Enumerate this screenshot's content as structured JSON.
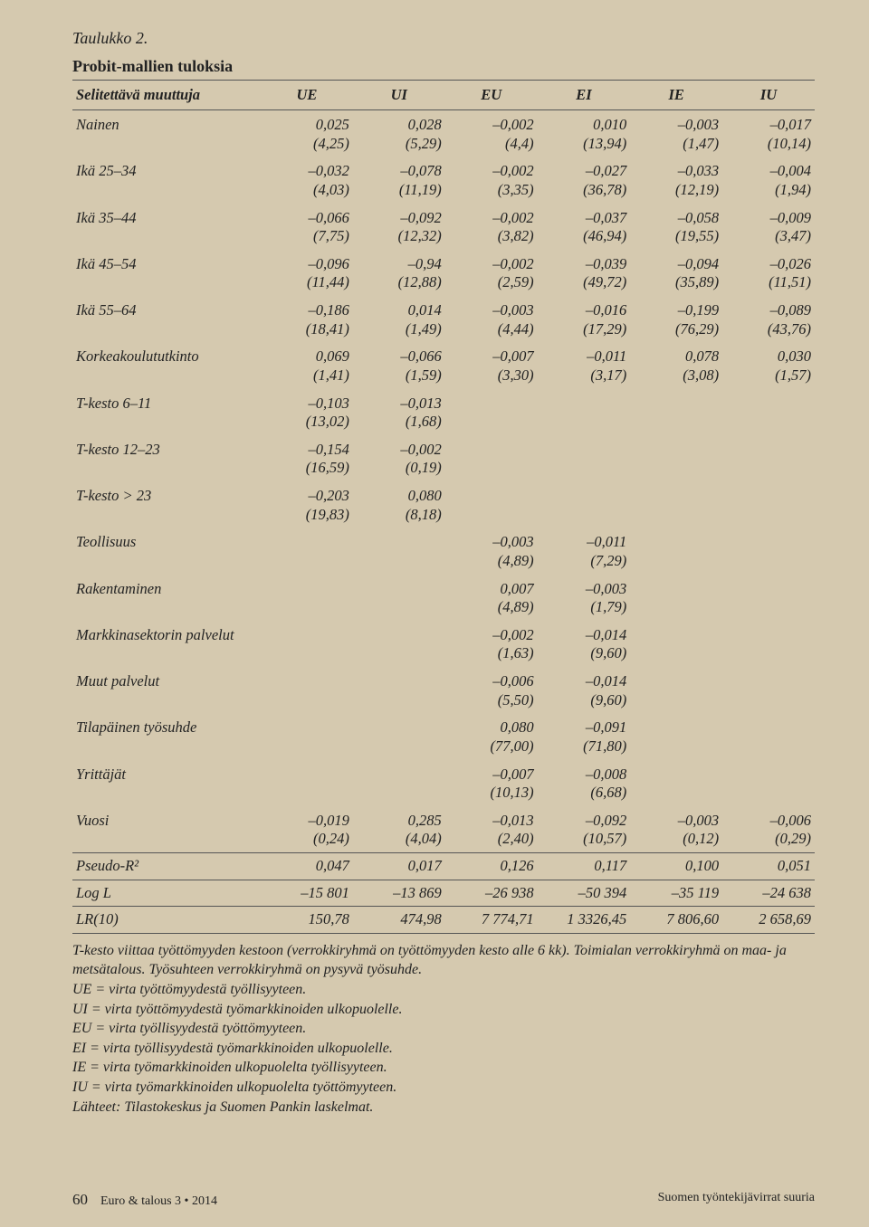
{
  "caption": "Taulukko 2.",
  "table_title": "Probit-mallien tuloksia",
  "columns": [
    "Selitettävä muuttuja",
    "UE",
    "UI",
    "EU",
    "EI",
    "IE",
    "IU"
  ],
  "rows": [
    {
      "label": "Nainen",
      "cells": [
        "0,025\n(4,25)",
        "0,028\n(5,29)",
        "–0,002\n(4,4)",
        "0,010\n(13,94)",
        "–0,003\n(1,47)",
        "–0,017\n(10,14)"
      ]
    },
    {
      "label": "Ikä 25–34",
      "cells": [
        "–0,032\n(4,03)",
        "–0,078\n(11,19)",
        "–0,002\n(3,35)",
        "–0,027\n(36,78)",
        "–0,033\n(12,19)",
        "–0,004\n(1,94)"
      ]
    },
    {
      "label": "Ikä 35–44",
      "cells": [
        "–0,066\n(7,75)",
        "–0,092\n(12,32)",
        "–0,002\n(3,82)",
        "–0,037\n(46,94)",
        "–0,058\n(19,55)",
        "–0,009\n(3,47)"
      ]
    },
    {
      "label": "Ikä 45–54",
      "cells": [
        "–0,096\n(11,44)",
        "–0,94\n(12,88)",
        "–0,002\n(2,59)",
        "–0,039\n(49,72)",
        "–0,094\n(35,89)",
        "–0,026\n(11,51)"
      ]
    },
    {
      "label": "Ikä 55–64",
      "cells": [
        "–0,186\n(18,41)",
        "0,014\n(1,49)",
        "–0,003\n(4,44)",
        "–0,016\n(17,29)",
        "–0,199\n(76,29)",
        "–0,089\n(43,76)"
      ]
    },
    {
      "label": "Korkeakoulututkinto",
      "cells": [
        "0,069\n(1,41)",
        "–0,066\n(1,59)",
        "–0,007\n(3,30)",
        "–0,011\n(3,17)",
        "0,078\n(3,08)",
        "0,030\n(1,57)"
      ]
    },
    {
      "label": "T-kesto 6–11",
      "cells": [
        "–0,103\n(13,02)",
        "–0,013\n(1,68)",
        "",
        "",
        "",
        ""
      ]
    },
    {
      "label": "T-kesto 12–23",
      "cells": [
        "–0,154\n(16,59)",
        "–0,002\n(0,19)",
        "",
        "",
        "",
        ""
      ]
    },
    {
      "label": "T-kesto > 23",
      "cells": [
        "–0,203\n(19,83)",
        "0,080\n(8,18)",
        "",
        "",
        "",
        ""
      ]
    },
    {
      "label": "Teollisuus",
      "cells": [
        "",
        "",
        "–0,003\n(4,89)",
        "–0,011\n(7,29)",
        "",
        ""
      ]
    },
    {
      "label": "Rakentaminen",
      "cells": [
        "",
        "",
        "0,007\n(4,89)",
        "–0,003\n(1,79)",
        "",
        ""
      ]
    },
    {
      "label": "Markkinasektorin palvelut",
      "cells": [
        "",
        "",
        "–0,002\n(1,63)",
        "–0,014\n(9,60)",
        "",
        ""
      ]
    },
    {
      "label": "Muut palvelut",
      "cells": [
        "",
        "",
        "–0,006\n(5,50)",
        "–0,014\n(9,60)",
        "",
        ""
      ]
    },
    {
      "label": "Tilapäinen työsuhde",
      "cells": [
        "",
        "",
        "0,080\n(77,00)",
        "–0,091\n(71,80)",
        "",
        ""
      ]
    },
    {
      "label": "Yrittäjät",
      "cells": [
        "",
        "",
        "–0,007\n(10,13)",
        "–0,008\n(6,68)",
        "",
        ""
      ]
    },
    {
      "label": "Vuosi",
      "cells": [
        "–0,019\n(0,24)",
        "0,285\n(4,04)",
        "–0,013\n(2,40)",
        "–0,092\n(10,57)",
        "–0,003\n(0,12)",
        "–0,006\n(0,29)"
      ]
    }
  ],
  "stat_rows": [
    {
      "label": "Pseudo-R²",
      "cells": [
        "0,047",
        "0,017",
        "0,126",
        "0,117",
        "0,100",
        "0,051"
      ]
    },
    {
      "label": "Log L",
      "cells": [
        "–15 801",
        "–13 869",
        "–26 938",
        "–50 394",
        "–35 119",
        "–24 638"
      ]
    },
    {
      "label": "LR(10)",
      "cells": [
        "150,78",
        "474,98",
        "7 774,71",
        "1 3326,45",
        "7 806,60",
        "2 658,69"
      ]
    }
  ],
  "notes": [
    "T-kesto viittaa työttömyyden kestoon (verrokkiryhmä on työttömyyden kesto alle 6 kk). Toimialan verrokkiryhmä on maa- ja metsätalous. Työsuhteen verrokkiryhmä on pysyvä työsuhde.",
    "UE = virta työttömyydestä työllisyyteen.",
    "UI = virta työttömyydestä työmarkkinoiden ulkopuolelle.",
    "EU = virta työllisyydestä työttömyyteen.",
    "EI = virta työllisyydestä työmarkkinoiden ulkopuolelle.",
    "IE = virta työmarkkinoiden ulkopuolelta työllisyyteen.",
    "IU = virta työmarkkinoiden ulkopuolelta työttömyyteen.",
    "Lähteet: Tilastokeskus ja Suomen Pankin laskelmat."
  ],
  "footer": {
    "page_num": "60",
    "journal": "Euro & talous 3 • 2014",
    "right": "Suomen työntekijävirrat suuria"
  }
}
